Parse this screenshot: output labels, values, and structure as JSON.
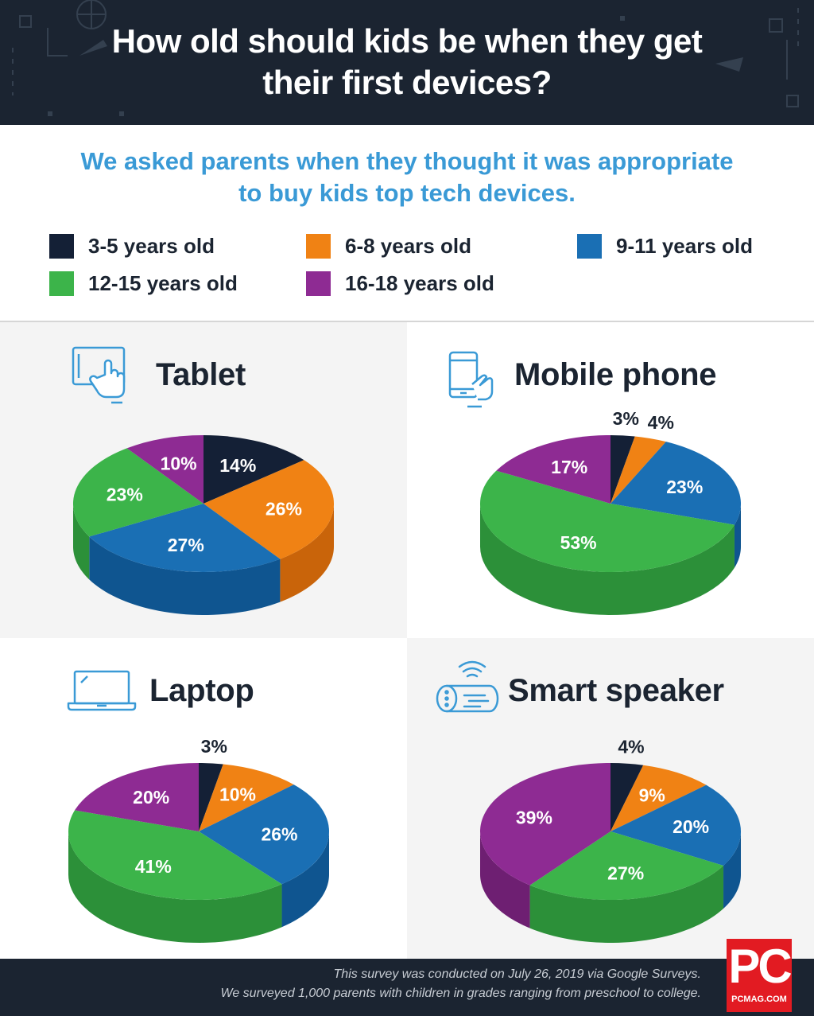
{
  "header": {
    "title_line1": "How old should kids be when they get",
    "title_line2": "their first devices?"
  },
  "intro": {
    "line1": "We asked parents when they thought it was appropriate",
    "line2": "to buy kids top tech devices."
  },
  "legend": [
    {
      "label": "3-5 years old",
      "color": "#142036"
    },
    {
      "label": "6-8 years old",
      "color": "#f08214"
    },
    {
      "label": "9-11 years old",
      "color": "#1a6fb4"
    },
    {
      "label": "12-15 years old",
      "color": "#3cb44a"
    },
    {
      "label": "16-18 years old",
      "color": "#8e2b93"
    }
  ],
  "chart_data": [
    {
      "type": "pie",
      "title": "Tablet",
      "icon": "tablet-touch-icon",
      "categories": [
        "3-5 years old",
        "6-8 years old",
        "9-11 years old",
        "12-15 years old",
        "16-18 years old"
      ],
      "values": [
        14,
        26,
        27,
        23,
        10
      ],
      "labels": [
        "14%",
        "26%",
        "27%",
        "23%",
        "10%"
      ]
    },
    {
      "type": "pie",
      "title": "Mobile phone",
      "icon": "mobile-phone-icon",
      "categories": [
        "3-5 years old",
        "6-8 years old",
        "9-11 years old",
        "12-15 years old",
        "16-18 years old"
      ],
      "values": [
        3,
        4,
        23,
        53,
        17
      ],
      "labels": [
        "3%",
        "4%",
        "23%",
        "53%",
        "17%"
      ]
    },
    {
      "type": "pie",
      "title": "Laptop",
      "icon": "laptop-icon",
      "categories": [
        "3-5 years old",
        "6-8 years old",
        "9-11 years old",
        "12-15 years old",
        "16-18 years old"
      ],
      "values": [
        3,
        10,
        26,
        41,
        20
      ],
      "labels": [
        "3%",
        "10%",
        "26%",
        "41%",
        "20%"
      ]
    },
    {
      "type": "pie",
      "title": "Smart speaker",
      "icon": "smart-speaker-icon",
      "categories": [
        "3-5 years old",
        "6-8 years old",
        "9-11 years old",
        "12-15 years old",
        "16-18 years old"
      ],
      "values": [
        4,
        9,
        20,
        27,
        39
      ],
      "labels": [
        "4%",
        "9%",
        "20%",
        "27%",
        "39%"
      ]
    }
  ],
  "colors": {
    "header_bg": "#1b2431",
    "intro_text": "#3a9ad6",
    "panel_shade": "#f4f4f4",
    "side_colors": [
      "#0d1626",
      "#c9640a",
      "#0f5590",
      "#2c9039",
      "#6e1f72"
    ]
  },
  "footer": {
    "note_line1": "This survey was conducted on July 26, 2019 via Google Surveys.",
    "note_line2": "We surveyed 1,000 parents with children in grades ranging from preschool to college.",
    "logo_text": "PC",
    "logo_site": "PCMAG.COM"
  }
}
